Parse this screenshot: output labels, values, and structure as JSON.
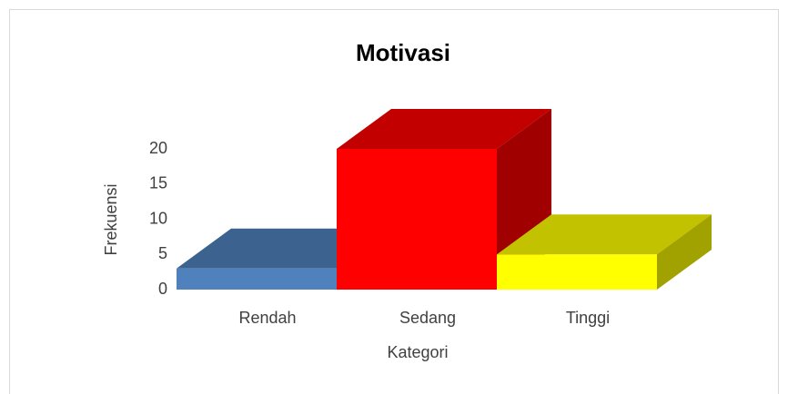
{
  "chart_data": {
    "type": "bar3d",
    "title": "Motivasi",
    "x_label": "Kategori",
    "y_label": "Frekuensi",
    "categories": [
      "Rendah",
      "Sedang",
      "Tinggi"
    ],
    "values": [
      3,
      20,
      5
    ],
    "colors": [
      "#4f81bd",
      "#ff0000",
      "#ffff00"
    ],
    "ylim": [
      0,
      20
    ],
    "yticks": [
      0,
      5,
      10,
      15,
      20
    ]
  }
}
